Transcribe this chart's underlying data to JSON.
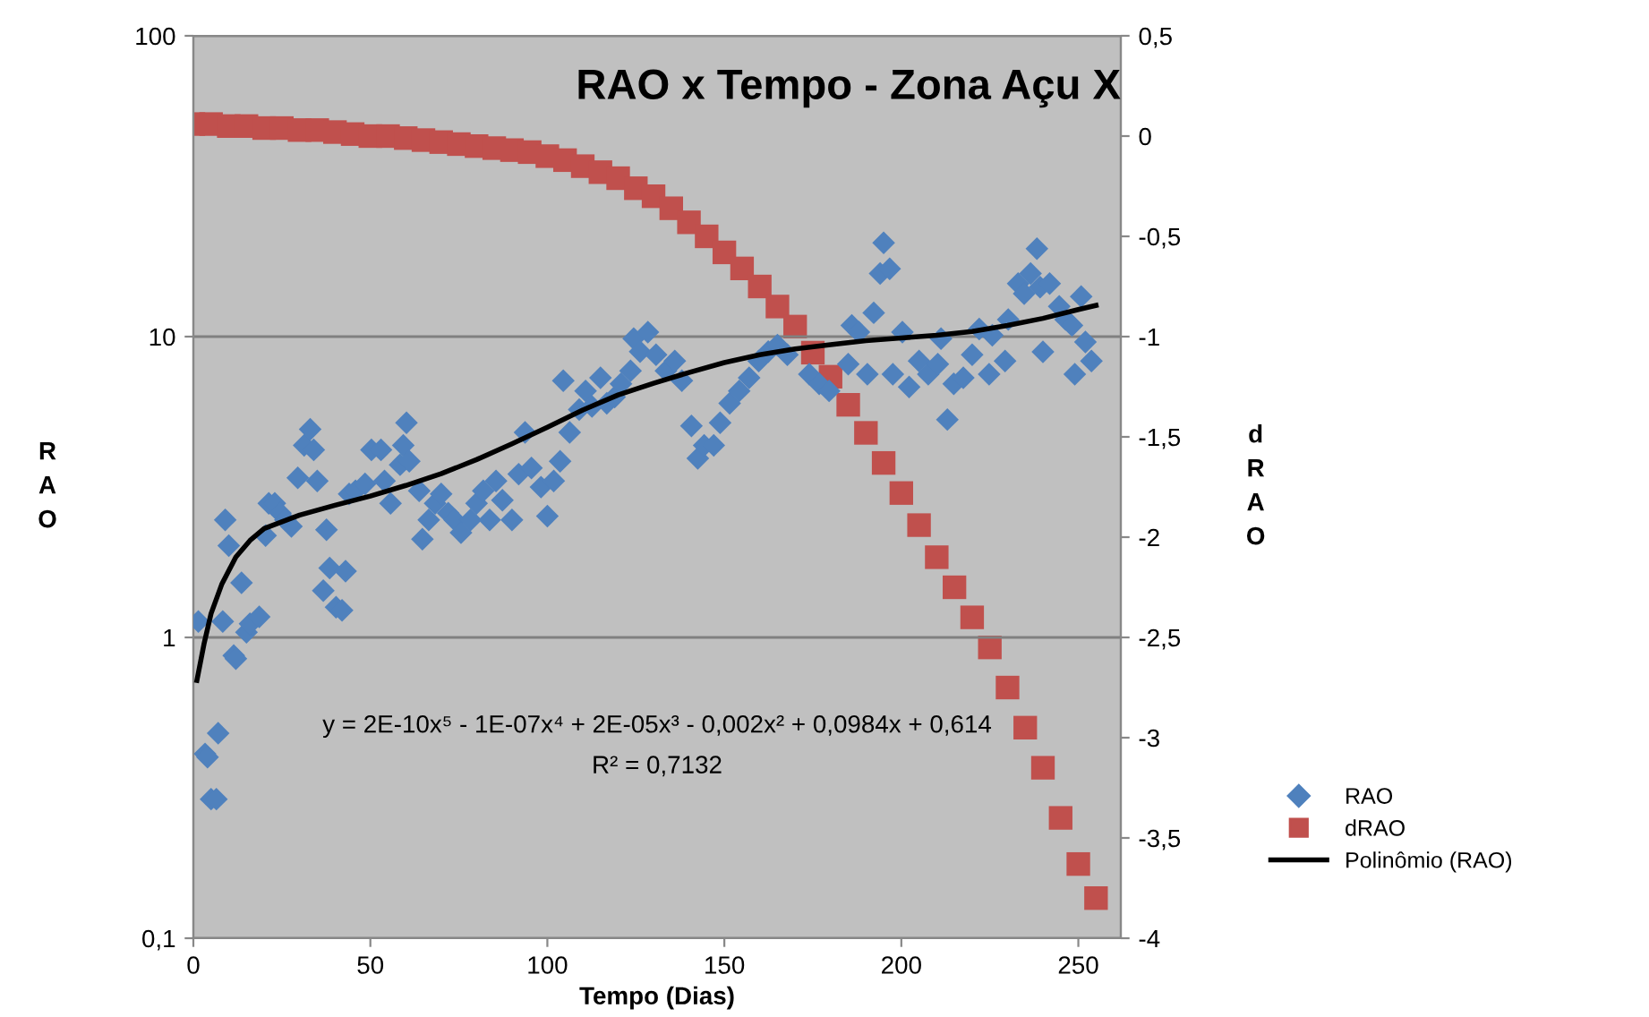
{
  "chart_data": {
    "type": "scatter",
    "title": "RAO x Tempo - Zona Açu X",
    "xlabel": "Tempo (Dias)",
    "ylabel": "RAO",
    "y2label": "dRAO",
    "log": "y",
    "grid": "y",
    "legend": "right",
    "xlim": [
      0,
      262
    ],
    "xticks": [
      0,
      50,
      100,
      150,
      200,
      250
    ],
    "ylim": [
      0.1,
      100
    ],
    "yticks": [
      {
        "value": 0.1,
        "label": "0,1"
      },
      1,
      10,
      100
    ],
    "y2lim": [
      -4,
      0.5
    ],
    "y2ticks": [
      {
        "value": -4,
        "label": "-4"
      },
      {
        "value": -3.5,
        "label": "-3,5"
      },
      {
        "value": -3,
        "label": "-3"
      },
      {
        "value": -2.5,
        "label": "-2,5"
      },
      {
        "value": -2,
        "label": "-2"
      },
      {
        "value": -1.5,
        "label": "-1,5"
      },
      {
        "value": -1,
        "label": "-1"
      },
      {
        "value": -0.5,
        "label": "-0,5"
      },
      {
        "value": 0,
        "label": "0"
      },
      {
        "value": 0.5,
        "label": "0,5"
      }
    ],
    "annotations": [
      "y = 2E-10x⁵ - 1E-07x⁴ + 2E-05x³ - 0,002x² + 0,0984x + 0,614",
      "R² = 0,7132"
    ],
    "series": [
      {
        "name": "RAO",
        "marker": "diamond",
        "color": "#4f81bd",
        "x": [
          1.4,
          3.3,
          4,
          7,
          5,
          6.5,
          9,
          10,
          8.3,
          11.4,
          12,
          13.6,
          15,
          16,
          18.6,
          20.4,
          21.3,
          23,
          24.6,
          26,
          27.7,
          29.5,
          31.3,
          33,
          34,
          35,
          37.6,
          38.5,
          36.7,
          40.3,
          42,
          43,
          44,
          45.8,
          48.5,
          50.3,
          53,
          54,
          55.7,
          58.4,
          59.3,
          60.2,
          61,
          63.8,
          64.7,
          66.5,
          68.3,
          70,
          72,
          73.8,
          75.6,
          78.3,
          80,
          81.9,
          83.7,
          85.5,
          87.3,
          90,
          91.9,
          93.7,
          95.5,
          98.2,
          100,
          101.8,
          103.6,
          104.5,
          106.3,
          109,
          110.8,
          112.6,
          115,
          116.8,
          119,
          120.8,
          123.5,
          124.4,
          126.2,
          128.4,
          130.7,
          133.5,
          136,
          138,
          140.7,
          142.5,
          144.3,
          147,
          148.8,
          151.5,
          154.2,
          157,
          159.7,
          162.4,
          165,
          167.8,
          174,
          176.8,
          179.6,
          185,
          186,
          188,
          190.4,
          192.2,
          194,
          195,
          196.7,
          200.3,
          197.6,
          202.2,
          205,
          207.6,
          210.3,
          211.2,
          213,
          214.8,
          217.5,
          220,
          222,
          224.8,
          225.7,
          229.3,
          230.2,
          233,
          234.7,
          236.5,
          238.3,
          239.2,
          240,
          241.9,
          244.6,
          246.4,
          248.2,
          249,
          250.8,
          252,
          253.7
        ],
        "values": [
          1.13,
          0.41,
          0.4,
          0.48,
          0.29,
          0.29,
          2.46,
          2.02,
          1.13,
          0.87,
          0.85,
          1.52,
          1.04,
          1.11,
          1.17,
          2.18,
          2.79,
          2.79,
          2.59,
          2.46,
          2.34,
          3.39,
          4.35,
          4.92,
          4.2,
          3.31,
          2.28,
          1.7,
          1.43,
          1.26,
          1.23,
          1.66,
          3.0,
          3.07,
          3.24,
          4.2,
          4.2,
          3.31,
          2.79,
          3.75,
          4.35,
          5.17,
          3.85,
          3.07,
          2.12,
          2.46,
          2.79,
          3.0,
          2.59,
          2.46,
          2.23,
          2.46,
          2.79,
          3.07,
          2.46,
          3.31,
          2.86,
          2.46,
          3.49,
          4.8,
          3.66,
          3.16,
          2.53,
          3.31,
          3.85,
          7.14,
          4.8,
          5.72,
          6.6,
          5.86,
          7.3,
          6.0,
          6.3,
          6.97,
          7.7,
          9.85,
          8.92,
          10.35,
          8.7,
          7.7,
          8.3,
          7.14,
          5.05,
          3.94,
          4.35,
          4.35,
          5.17,
          6.0,
          6.6,
          7.3,
          8.3,
          8.92,
          9.37,
          8.7,
          7.5,
          6.97,
          6.6,
          8.1,
          10.9,
          10.35,
          7.5,
          12,
          16.2,
          20.5,
          16.8,
          10.35,
          7.5,
          6.8,
          8.3,
          7.5,
          8.1,
          9.85,
          5.3,
          6.97,
          7.3,
          8.7,
          10.6,
          7.5,
          10.1,
          8.3,
          11.4,
          15,
          13.9,
          16.2,
          19.6,
          14.6,
          8.9,
          15,
          12.6,
          11.4,
          10.9,
          7.5,
          13.6,
          9.6,
          8.3
        ]
      },
      {
        "name": "dRAO",
        "marker": "square",
        "axis": "y2",
        "color": "#c0504d",
        "x": [
          0,
          5,
          10,
          15,
          20,
          25,
          30,
          35,
          40,
          45,
          50,
          55,
          60,
          65,
          70,
          75,
          80,
          85,
          90,
          95,
          100,
          105,
          110,
          115,
          120,
          125,
          130,
          135,
          140,
          145,
          150,
          155,
          160,
          165,
          170,
          175,
          180,
          185,
          190,
          195,
          200,
          205,
          210,
          215,
          220,
          225,
          230,
          235,
          240,
          245,
          250,
          255
        ],
        "values": [
          0.06,
          0.06,
          0.05,
          0.05,
          0.04,
          0.04,
          0.03,
          0.03,
          0.02,
          0.01,
          0.0,
          0.0,
          -0.01,
          -0.02,
          -0.03,
          -0.04,
          -0.05,
          -0.06,
          -0.07,
          -0.08,
          -0.1,
          -0.12,
          -0.15,
          -0.18,
          -0.21,
          -0.26,
          -0.3,
          -0.36,
          -0.43,
          -0.5,
          -0.58,
          -0.66,
          -0.75,
          -0.85,
          -0.95,
          -1.08,
          -1.2,
          -1.34,
          -1.48,
          -1.63,
          -1.78,
          -1.94,
          -2.1,
          -2.25,
          -2.4,
          -2.55,
          -2.75,
          -2.95,
          -3.15,
          -3.4,
          -3.63,
          -3.8
        ]
      },
      {
        "name": "Polinômio (RAO)",
        "type": "line",
        "marker": "none",
        "color": "#000000",
        "x": [
          1,
          3,
          5,
          8,
          12,
          16,
          20,
          30,
          40,
          50,
          60,
          70,
          80,
          90,
          100,
          110,
          120,
          130,
          140,
          150,
          160,
          170,
          180,
          190,
          200,
          210,
          220,
          230,
          240,
          250,
          255
        ],
        "values": [
          0.72,
          0.95,
          1.2,
          1.5,
          1.85,
          2.1,
          2.3,
          2.55,
          2.75,
          2.95,
          3.2,
          3.5,
          3.9,
          4.4,
          5.0,
          5.7,
          6.4,
          7.0,
          7.6,
          8.2,
          8.7,
          9.1,
          9.4,
          9.7,
          9.9,
          10.1,
          10.4,
          10.9,
          11.5,
          12.3,
          12.7
        ]
      }
    ]
  }
}
